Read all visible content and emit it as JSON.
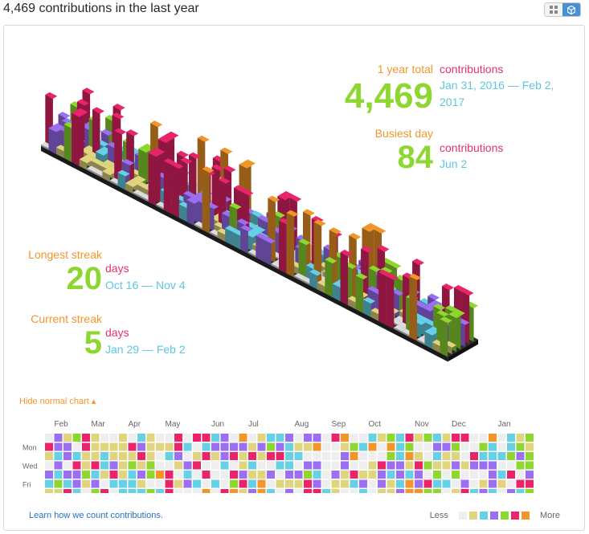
{
  "header": {
    "title": "4,469 contributions in the last year"
  },
  "view_toggle": {
    "grid_icon": "grid-icon",
    "cube_icon": "cube-icon",
    "active": "cube"
  },
  "stats": {
    "total": {
      "label": "1 year total",
      "value": "4,469",
      "unit": "contributions",
      "range": "Jan 31, 2016 — Feb 2, 2017"
    },
    "busiest": {
      "label": "Busiest day",
      "value": "84",
      "unit": "contributions",
      "date": "Jun 2"
    },
    "longest": {
      "label": "Longest streak",
      "value": "20",
      "unit": "days",
      "range": "Oct 16 — Nov 4"
    },
    "current": {
      "label": "Current streak",
      "value": "5",
      "unit": "days",
      "range": "Jan 29 — Feb 2"
    }
  },
  "toggle_link": "Hide normal chart ▴",
  "calendar": {
    "months": [
      "Feb",
      "Mar",
      "Apr",
      "May",
      "Jun",
      "Jul",
      "Aug",
      "Sep",
      "Oct",
      "Nov",
      "Dec",
      "Jan"
    ],
    "days": [
      "Mon",
      "Wed",
      "Fri"
    ]
  },
  "footer": {
    "learn": "Learn how we count contributions.",
    "less": "Less",
    "more": "More"
  },
  "colors": {
    "empty": "#eeeeee",
    "l1": "#e0d57e",
    "l2": "#66d1e6",
    "l3": "#9b6ef2",
    "l4": "#8dd730",
    "l5": "#e9246b",
    "l6": "#f29629",
    "label_orange": "#f29629",
    "label_pink": "#e5336b",
    "label_blue": "#5fc6e0",
    "big_green": "#8dd730"
  }
}
